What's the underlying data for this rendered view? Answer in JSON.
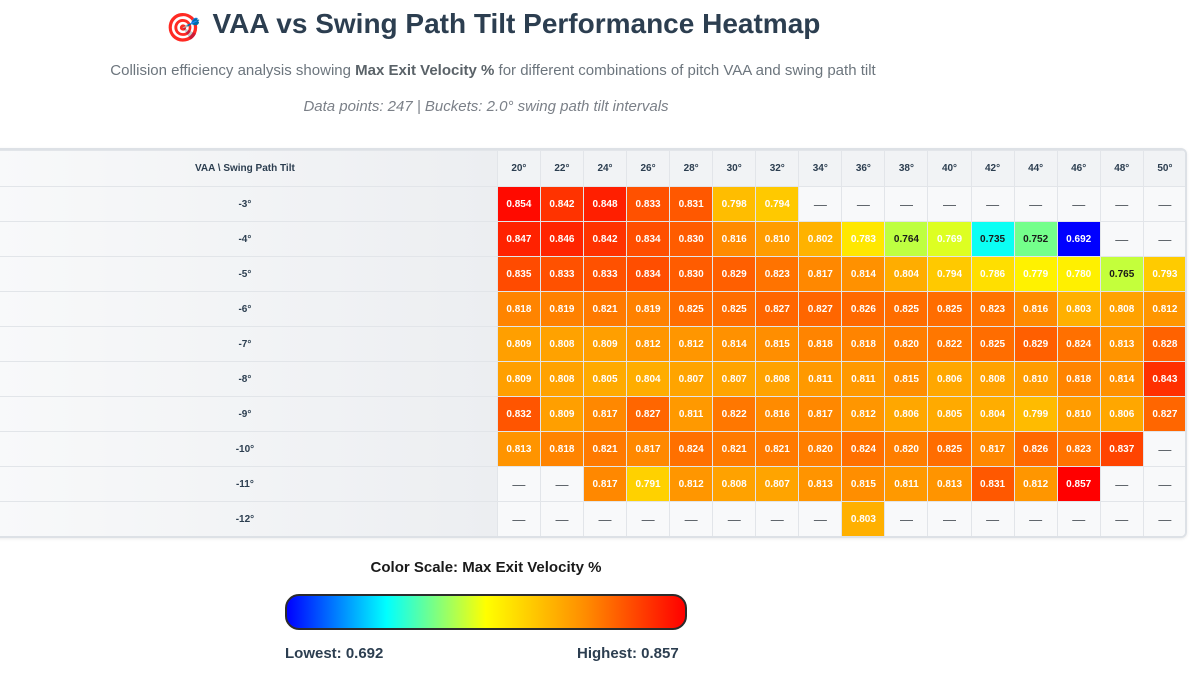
{
  "header": {
    "emoji": "🎯",
    "title": "VAA vs Swing Path Tilt Performance Heatmap",
    "subtitle_pre": "Collision efficiency analysis showing ",
    "subtitle_metric": "Max Exit Velocity %",
    "subtitle_post": " for different combinations of pitch VAA and swing path tilt",
    "meta": "Data points: 247 | Buckets: 2.0° swing path tilt intervals"
  },
  "legend": {
    "title": "Color Scale: Max Exit Velocity %",
    "low_label": "Lowest: 0.692",
    "high_label": "Highest: 0.857",
    "colors": [
      "#0000ff",
      "#00ffff",
      "#ffff00",
      "#ff8c00",
      "#ff0000"
    ]
  },
  "chart_data": {
    "type": "heatmap",
    "corner_label": "VAA \\ Swing Path Tilt",
    "x_labels": [
      "20°",
      "22°",
      "24°",
      "26°",
      "28°",
      "30°",
      "32°",
      "34°",
      "36°",
      "38°",
      "40°",
      "42°",
      "44°",
      "46°",
      "48°",
      "50°"
    ],
    "y_labels": [
      "-3°",
      "-4°",
      "-5°",
      "-6°",
      "-7°",
      "-8°",
      "-9°",
      "-10°",
      "-11°",
      "-12°"
    ],
    "empty_label": "—",
    "value_range": [
      0.692,
      0.857
    ],
    "values": [
      [
        0.854,
        0.842,
        0.848,
        0.833,
        0.831,
        0.798,
        0.794,
        null,
        null,
        null,
        null,
        null,
        null,
        null,
        null,
        null
      ],
      [
        0.847,
        0.846,
        0.842,
        0.834,
        0.83,
        0.816,
        0.81,
        0.802,
        0.783,
        0.764,
        0.769,
        0.735,
        0.752,
        0.692,
        null,
        null
      ],
      [
        0.835,
        0.833,
        0.833,
        0.834,
        0.83,
        0.829,
        0.823,
        0.817,
        0.814,
        0.804,
        0.794,
        0.786,
        0.779,
        0.78,
        0.765,
        0.793
      ],
      [
        0.818,
        0.819,
        0.821,
        0.819,
        0.825,
        0.825,
        0.827,
        0.827,
        0.826,
        0.825,
        0.825,
        0.823,
        0.816,
        0.803,
        0.808,
        0.812
      ],
      [
        0.809,
        0.808,
        0.809,
        0.812,
        0.812,
        0.814,
        0.815,
        0.818,
        0.818,
        0.82,
        0.822,
        0.825,
        0.829,
        0.824,
        0.813,
        0.828
      ],
      [
        0.809,
        0.808,
        0.805,
        0.804,
        0.807,
        0.807,
        0.808,
        0.811,
        0.811,
        0.815,
        0.806,
        0.808,
        0.81,
        0.818,
        0.814,
        0.843
      ],
      [
        0.832,
        0.809,
        0.817,
        0.827,
        0.811,
        0.822,
        0.816,
        0.817,
        0.812,
        0.806,
        0.805,
        0.804,
        0.799,
        0.81,
        0.806,
        0.827
      ],
      [
        0.813,
        0.818,
        0.821,
        0.817,
        0.824,
        0.821,
        0.821,
        0.82,
        0.824,
        0.82,
        0.825,
        0.817,
        0.826,
        0.823,
        0.837,
        null
      ],
      [
        null,
        null,
        0.817,
        0.791,
        0.812,
        0.808,
        0.807,
        0.813,
        0.815,
        0.811,
        0.813,
        0.831,
        0.812,
        0.857,
        null,
        null
      ],
      [
        null,
        null,
        null,
        null,
        null,
        null,
        null,
        null,
        0.803,
        null,
        null,
        null,
        null,
        null,
        null,
        null
      ]
    ]
  }
}
